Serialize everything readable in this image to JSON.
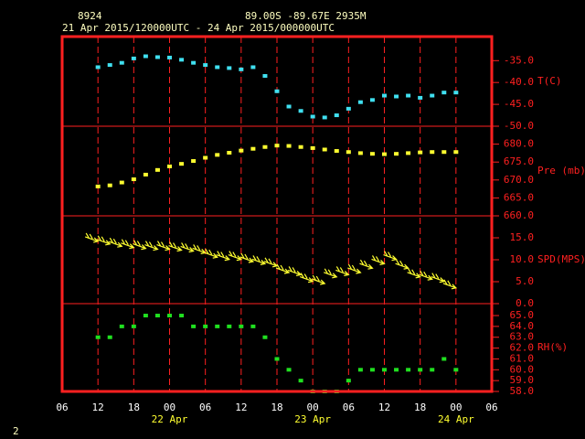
{
  "header": {
    "station": "8924",
    "location": "89.00S  -89.67E  2935M",
    "period": "21 Apr 2015/120000UTC - 24 Apr 2015/000000UTC",
    "page": "2"
  },
  "chart_data": [
    {
      "type": "scatter",
      "ylabel": "T(C)",
      "color": "#40e0f0",
      "x": [
        "2015-04-21T12:00Z",
        "2015-04-21T14:00Z",
        "2015-04-21T16:00Z",
        "2015-04-21T18:00Z",
        "2015-04-21T20:00Z",
        "2015-04-21T22:00Z",
        "2015-04-22T00:00Z",
        "2015-04-22T02:00Z",
        "2015-04-22T04:00Z",
        "2015-04-22T06:00Z",
        "2015-04-22T08:00Z",
        "2015-04-22T10:00Z",
        "2015-04-22T12:00Z",
        "2015-04-22T14:00Z",
        "2015-04-22T16:00Z",
        "2015-04-22T18:00Z",
        "2015-04-22T20:00Z",
        "2015-04-22T22:00Z",
        "2015-04-23T00:00Z",
        "2015-04-23T02:00Z",
        "2015-04-23T04:00Z",
        "2015-04-23T06:00Z",
        "2015-04-23T08:00Z",
        "2015-04-23T10:00Z",
        "2015-04-23T12:00Z",
        "2015-04-23T14:00Z",
        "2015-04-23T16:00Z",
        "2015-04-23T18:00Z",
        "2015-04-23T20:00Z",
        "2015-04-23T22:00Z",
        "2015-04-24T00:00Z"
      ],
      "values": [
        -36.5,
        -36,
        -35.5,
        -34.5,
        -34,
        -34.2,
        -34.3,
        -34.8,
        -35.5,
        -36,
        -36.5,
        -36.7,
        -37,
        -36.5,
        -38.5,
        -42,
        -45.5,
        -46.5,
        -47.8,
        -48,
        -47.5,
        -46,
        -44.5,
        -44,
        -43,
        -43.2,
        -43,
        -43.5,
        -43,
        -42.3,
        -42.3
      ],
      "ylim": [
        -50,
        -29.5
      ],
      "yticks": [
        {
          "value": -50,
          "label": "-50.0"
        },
        {
          "value": -45,
          "label": "-45.0"
        },
        {
          "value": -40,
          "label": "-40.0"
        },
        {
          "value": -35,
          "label": "-35.0"
        }
      ]
    },
    {
      "type": "scatter",
      "ylabel": "Pre (mb)",
      "color": "#ffff30",
      "x": [
        "2015-04-21T12:00Z",
        "2015-04-21T14:00Z",
        "2015-04-21T16:00Z",
        "2015-04-21T18:00Z",
        "2015-04-21T20:00Z",
        "2015-04-21T22:00Z",
        "2015-04-22T00:00Z",
        "2015-04-22T02:00Z",
        "2015-04-22T04:00Z",
        "2015-04-22T06:00Z",
        "2015-04-22T08:00Z",
        "2015-04-22T10:00Z",
        "2015-04-22T12:00Z",
        "2015-04-22T14:00Z",
        "2015-04-22T16:00Z",
        "2015-04-22T18:00Z",
        "2015-04-22T20:00Z",
        "2015-04-22T22:00Z",
        "2015-04-23T00:00Z",
        "2015-04-23T02:00Z",
        "2015-04-23T04:00Z",
        "2015-04-23T06:00Z",
        "2015-04-23T08:00Z",
        "2015-04-23T10:00Z",
        "2015-04-23T12:00Z",
        "2015-04-23T14:00Z",
        "2015-04-23T16:00Z",
        "2015-04-23T18:00Z",
        "2015-04-23T20:00Z",
        "2015-04-23T22:00Z",
        "2015-04-24T00:00Z"
      ],
      "values": [
        668.2,
        668.5,
        669.3,
        670.2,
        671.5,
        672.8,
        673.8,
        674.5,
        675.3,
        676.2,
        677,
        677.6,
        678.2,
        678.7,
        679.2,
        679.6,
        679.5,
        679.2,
        678.9,
        678.5,
        678.1,
        677.8,
        677.5,
        677.3,
        677.2,
        677.3,
        677.5,
        677.7,
        677.8,
        677.8,
        677.8
      ],
      "ylim": [
        660,
        685
      ],
      "yticks": [
        {
          "value": 660,
          "label": "660.0"
        },
        {
          "value": 665,
          "label": "665.0"
        },
        {
          "value": 670,
          "label": "670.0"
        },
        {
          "value": 675,
          "label": "675.0"
        },
        {
          "value": 680,
          "label": "680.0"
        }
      ]
    },
    {
      "type": "barb",
      "ylabel": "SPD(MPS)",
      "color": "#ffff30",
      "x": [
        "2015-04-21T12:00Z",
        "2015-04-21T14:00Z",
        "2015-04-21T16:00Z",
        "2015-04-21T18:00Z",
        "2015-04-21T20:00Z",
        "2015-04-21T22:00Z",
        "2015-04-22T00:00Z",
        "2015-04-22T02:00Z",
        "2015-04-22T04:00Z",
        "2015-04-22T06:00Z",
        "2015-04-22T08:00Z",
        "2015-04-22T10:00Z",
        "2015-04-22T12:00Z",
        "2015-04-22T14:00Z",
        "2015-04-22T16:00Z",
        "2015-04-22T18:00Z",
        "2015-04-22T20:00Z",
        "2015-04-22T22:00Z",
        "2015-04-23T00:00Z",
        "2015-04-23T02:00Z",
        "2015-04-23T04:00Z",
        "2015-04-23T06:00Z",
        "2015-04-23T08:00Z",
        "2015-04-23T10:00Z",
        "2015-04-23T12:00Z",
        "2015-04-23T14:00Z",
        "2015-04-23T16:00Z",
        "2015-04-23T18:00Z",
        "2015-04-23T20:00Z",
        "2015-04-23T22:00Z",
        "2015-04-24T00:00Z"
      ],
      "values": [
        14.6,
        14,
        13.5,
        13.2,
        13,
        12.8,
        12.8,
        12.6,
        12.4,
        12,
        11,
        10.5,
        10.5,
        10,
        9.5,
        9,
        7.5,
        7,
        5.5,
        5,
        6.5,
        7,
        7.5,
        8.5,
        9.5,
        10.5,
        8.5,
        6.5,
        6,
        5.5,
        4
      ],
      "ylim": [
        0,
        20
      ],
      "yticks": [
        {
          "value": 0,
          "label": "0.0"
        },
        {
          "value": 5,
          "label": "5.0"
        },
        {
          "value": 10,
          "label": "10.0"
        },
        {
          "value": 15,
          "label": "15.0"
        }
      ]
    },
    {
      "type": "scatter",
      "ylabel": "RH(%)",
      "color": "#20e020",
      "x": [
        "2015-04-21T12:00Z",
        "2015-04-21T14:00Z",
        "2015-04-21T16:00Z",
        "2015-04-21T18:00Z",
        "2015-04-21T20:00Z",
        "2015-04-21T22:00Z",
        "2015-04-22T00:00Z",
        "2015-04-22T02:00Z",
        "2015-04-22T04:00Z",
        "2015-04-22T06:00Z",
        "2015-04-22T08:00Z",
        "2015-04-22T10:00Z",
        "2015-04-22T12:00Z",
        "2015-04-22T14:00Z",
        "2015-04-22T16:00Z",
        "2015-04-22T18:00Z",
        "2015-04-22T20:00Z",
        "2015-04-22T22:00Z",
        "2015-04-23T00:00Z",
        "2015-04-23T02:00Z",
        "2015-04-23T04:00Z",
        "2015-04-23T06:00Z",
        "2015-04-23T08:00Z",
        "2015-04-23T10:00Z",
        "2015-04-23T12:00Z",
        "2015-04-23T14:00Z",
        "2015-04-23T16:00Z",
        "2015-04-23T18:00Z",
        "2015-04-23T20:00Z",
        "2015-04-23T22:00Z",
        "2015-04-24T00:00Z"
      ],
      "values": [
        63,
        63,
        64,
        64,
        65,
        65,
        65,
        65,
        64,
        64,
        64,
        64,
        64,
        64,
        63,
        61,
        60,
        59,
        58,
        58,
        58,
        59,
        60,
        60,
        60,
        60,
        60,
        60,
        60,
        61,
        60
      ],
      "ylim": [
        58,
        66.1
      ],
      "yticks": [
        {
          "value": 58,
          "label": "58.0"
        },
        {
          "value": 59,
          "label": "59.0"
        },
        {
          "value": 60,
          "label": "60.0"
        },
        {
          "value": 61,
          "label": "61.0"
        },
        {
          "value": 62,
          "label": "62.0"
        },
        {
          "value": 63,
          "label": "63.0"
        },
        {
          "value": 64,
          "label": "64.0"
        },
        {
          "value": 65,
          "label": "65.0"
        }
      ],
      "xlim": [
        "2015-04-21T06:00Z",
        "2015-04-24T06:00Z"
      ],
      "xticks": [
        {
          "value": "2015-04-21T06:00Z",
          "label": "06"
        },
        {
          "value": "2015-04-21T12:00Z",
          "label": "12"
        },
        {
          "value": "2015-04-21T18:00Z",
          "label": "18"
        },
        {
          "value": "2015-04-22T00:00Z",
          "label": "00"
        },
        {
          "value": "2015-04-22T06:00Z",
          "label": "06"
        },
        {
          "value": "2015-04-22T12:00Z",
          "label": "12"
        },
        {
          "value": "2015-04-22T18:00Z",
          "label": "18"
        },
        {
          "value": "2015-04-23T00:00Z",
          "label": "00"
        },
        {
          "value": "2015-04-23T06:00Z",
          "label": "06"
        },
        {
          "value": "2015-04-23T12:00Z",
          "label": "12"
        },
        {
          "value": "2015-04-23T18:00Z",
          "label": "18"
        },
        {
          "value": "2015-04-24T00:00Z",
          "label": "00"
        },
        {
          "value": "2015-04-24T06:00Z",
          "label": "06"
        }
      ],
      "day_labels": [
        {
          "value": "2015-04-22T00:00Z",
          "label": "22 Apr"
        },
        {
          "value": "2015-04-23T00:00Z",
          "label": "23 Apr"
        },
        {
          "value": "2015-04-24T00:00Z",
          "label": "24 Apr"
        }
      ]
    }
  ]
}
